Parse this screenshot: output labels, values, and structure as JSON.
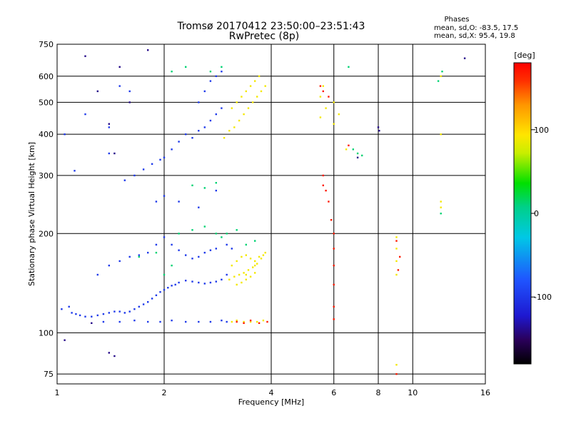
{
  "chart_data": {
    "type": "scatter",
    "title": "Tromsø 20170412 23:50:00–23:51:43",
    "subtitle": "RwPretec (8p)",
    "xlabel": "Frequency [MHz]",
    "ylabel": "Stationary phase Virtual Height [km]",
    "x_scale": "log",
    "y_scale": "log",
    "xlim": [
      1,
      16
    ],
    "ylim": [
      70,
      750
    ],
    "x_ticks": [
      1,
      2,
      4,
      6,
      8,
      10,
      16
    ],
    "x_tick_labels": [
      "1",
      "2",
      "4",
      "6",
      "8",
      "10",
      "16"
    ],
    "y_ticks": [
      75,
      100,
      200,
      300,
      400,
      500,
      600,
      750
    ],
    "y_tick_labels": [
      "75",
      "100",
      "200",
      "300",
      "400",
      "500",
      "600",
      "750"
    ],
    "grid": true,
    "phases": {
      "heading": "Phases",
      "line_o": "mean, sd,O: -83.5, 17.5",
      "line_x": "mean, sd,X:  95.4, 19.8"
    },
    "colorbar": {
      "label": "[deg]",
      "range": [
        -180,
        180
      ],
      "ticks": [
        100,
        0,
        -100
      ],
      "tick_labels": [
        "100",
        "0",
        "-100"
      ]
    },
    "series": [
      {
        "points": [
          [
            1.1,
            115
          ],
          [
            1.13,
            114
          ],
          [
            1.16,
            113
          ],
          [
            1.2,
            112
          ],
          [
            1.25,
            112
          ],
          [
            1.3,
            113
          ],
          [
            1.35,
            114
          ],
          [
            1.4,
            115
          ],
          [
            1.45,
            116
          ],
          [
            1.5,
            116
          ],
          [
            1.55,
            115
          ],
          [
            1.6,
            116
          ],
          [
            1.65,
            118
          ],
          [
            1.7,
            120
          ],
          [
            1.75,
            122
          ],
          [
            1.8,
            124
          ],
          [
            1.85,
            127
          ],
          [
            1.9,
            130
          ],
          [
            1.95,
            133
          ],
          [
            2.0,
            135
          ],
          [
            2.05,
            137
          ],
          [
            2.1,
            139
          ],
          [
            2.15,
            140
          ],
          [
            2.2,
            142
          ],
          [
            2.3,
            144
          ],
          [
            2.4,
            143
          ],
          [
            2.5,
            142
          ],
          [
            2.6,
            141
          ],
          [
            2.7,
            142
          ],
          [
            2.8,
            143
          ],
          [
            2.9,
            145
          ],
          [
            3.0,
            150
          ],
          [
            1.3,
            150
          ],
          [
            1.4,
            160
          ],
          [
            1.5,
            165
          ],
          [
            1.6,
            170
          ],
          [
            1.7,
            172
          ],
          [
            1.8,
            175
          ],
          [
            1.9,
            185
          ],
          [
            2.0,
            195
          ],
          [
            2.1,
            185
          ],
          [
            2.2,
            178
          ],
          [
            2.3,
            172
          ],
          [
            2.4,
            168
          ],
          [
            2.5,
            170
          ],
          [
            2.6,
            175
          ],
          [
            2.7,
            178
          ],
          [
            2.8,
            180
          ],
          [
            3.0,
            185
          ],
          [
            3.1,
            180
          ],
          [
            1.35,
            108
          ],
          [
            1.5,
            108
          ],
          [
            1.65,
            109
          ],
          [
            1.8,
            108
          ],
          [
            1.95,
            108
          ],
          [
            2.1,
            109
          ],
          [
            2.3,
            108
          ],
          [
            2.5,
            108
          ],
          [
            2.7,
            108
          ],
          [
            2.9,
            109
          ],
          [
            3.0,
            108
          ],
          [
            1.55,
            290
          ],
          [
            1.65,
            300
          ],
          [
            1.75,
            313
          ],
          [
            1.85,
            325
          ],
          [
            1.95,
            335
          ],
          [
            2.0,
            340
          ],
          [
            2.1,
            360
          ],
          [
            2.2,
            380
          ],
          [
            2.3,
            400
          ],
          [
            2.4,
            390
          ],
          [
            2.5,
            410
          ],
          [
            2.6,
            420
          ],
          [
            2.7,
            440
          ],
          [
            2.8,
            460
          ],
          [
            2.9,
            480
          ],
          [
            2.5,
            500
          ],
          [
            2.6,
            540
          ],
          [
            2.7,
            580
          ],
          [
            2.8,
            600
          ],
          [
            2.9,
            620
          ],
          [
            1.9,
            250
          ],
          [
            2.0,
            260
          ],
          [
            2.2,
            250
          ],
          [
            2.5,
            240
          ],
          [
            2.8,
            270
          ],
          [
            1.2,
            460
          ],
          [
            1.4,
            420
          ],
          [
            1.4,
            350
          ],
          [
            1.5,
            560
          ],
          [
            1.6,
            540
          ],
          [
            1.05,
            400
          ],
          [
            1.12,
            310
          ],
          [
            1.08,
            120
          ],
          [
            1.03,
            118
          ]
        ],
        "phase": -100
      },
      {
        "points": [
          [
            3.05,
            145
          ],
          [
            3.15,
            148
          ],
          [
            3.25,
            150
          ],
          [
            3.35,
            152
          ],
          [
            3.45,
            155
          ],
          [
            3.55,
            158
          ],
          [
            3.65,
            162
          ],
          [
            3.75,
            168
          ],
          [
            3.85,
            175
          ],
          [
            3.1,
            160
          ],
          [
            3.2,
            165
          ],
          [
            3.3,
            170
          ],
          [
            3.4,
            172
          ],
          [
            3.5,
            168
          ],
          [
            3.6,
            165
          ],
          [
            3.7,
            170
          ],
          [
            3.2,
            140
          ],
          [
            3.3,
            142
          ],
          [
            3.4,
            145
          ],
          [
            3.5,
            148
          ],
          [
            3.6,
            152
          ],
          [
            3.1,
            108
          ],
          [
            3.2,
            109
          ],
          [
            3.35,
            108
          ],
          [
            3.5,
            108
          ],
          [
            3.65,
            108
          ],
          [
            3.8,
            109
          ],
          [
            3.1,
            480
          ],
          [
            3.2,
            500
          ],
          [
            3.3,
            520
          ],
          [
            3.4,
            540
          ],
          [
            3.5,
            560
          ],
          [
            3.6,
            580
          ],
          [
            3.7,
            600
          ],
          [
            3.15,
            420
          ],
          [
            3.25,
            440
          ],
          [
            3.35,
            460
          ],
          [
            3.45,
            480
          ],
          [
            3.55,
            500
          ],
          [
            3.65,
            520
          ],
          [
            3.75,
            540
          ],
          [
            3.85,
            560
          ],
          [
            2.95,
            390
          ],
          [
            3.05,
            410
          ],
          [
            3.4,
            150
          ],
          [
            3.6,
            160
          ],
          [
            3.8,
            172
          ],
          [
            9.0,
            195
          ],
          [
            9.0,
            180
          ],
          [
            9.0,
            165
          ],
          [
            9.0,
            150
          ],
          [
            9.0,
            80
          ],
          [
            12.0,
            250
          ],
          [
            12.0,
            240
          ],
          [
            12.0,
            400
          ],
          [
            12.0,
            600
          ],
          [
            5.5,
            450
          ],
          [
            5.5,
            520
          ],
          [
            5.7,
            480
          ],
          [
            6.0,
            430
          ],
          [
            6.0,
            500
          ],
          [
            6.2,
            460
          ],
          [
            6.5,
            360
          ],
          [
            5.6,
            560
          ]
        ],
        "phase": 90
      },
      {
        "points": [
          [
            2.2,
            200
          ],
          [
            2.4,
            205
          ],
          [
            2.6,
            210
          ],
          [
            2.8,
            200
          ],
          [
            2.9,
            195
          ],
          [
            2.4,
            280
          ],
          [
            2.6,
            275
          ],
          [
            2.8,
            285
          ],
          [
            2.1,
            620
          ],
          [
            2.3,
            640
          ],
          [
            2.7,
            620
          ],
          [
            2.9,
            640
          ],
          [
            3.0,
            200
          ],
          [
            3.2,
            205
          ],
          [
            3.4,
            185
          ],
          [
            3.6,
            190
          ],
          [
            12.0,
            230
          ],
          [
            11.8,
            580
          ],
          [
            12.1,
            620
          ],
          [
            6.6,
            640
          ],
          [
            6.8,
            360
          ],
          [
            7.0,
            350
          ],
          [
            7.2,
            345
          ],
          [
            1.7,
            170
          ],
          [
            1.9,
            175
          ],
          [
            2.0,
            150
          ],
          [
            2.1,
            160
          ]
        ],
        "phase": 10
      },
      {
        "points": [
          [
            3.2,
            108
          ],
          [
            3.35,
            107
          ],
          [
            3.5,
            109
          ],
          [
            3.7,
            107
          ],
          [
            3.9,
            108
          ],
          [
            5.5,
            560
          ],
          [
            5.6,
            540
          ],
          [
            5.8,
            520
          ],
          [
            5.6,
            300
          ],
          [
            5.7,
            270
          ],
          [
            5.8,
            250
          ],
          [
            5.9,
            220
          ],
          [
            6.0,
            200
          ],
          [
            6.0,
            180
          ],
          [
            6.0,
            160
          ],
          [
            6.0,
            140
          ],
          [
            6.0,
            120
          ],
          [
            6.0,
            110
          ],
          [
            9.0,
            190
          ],
          [
            9.2,
            170
          ],
          [
            9.1,
            155
          ],
          [
            9.0,
            75
          ],
          [
            6.6,
            370
          ],
          [
            5.6,
            280
          ]
        ],
        "phase": 170
      },
      {
        "points": [
          [
            1.8,
            720
          ],
          [
            1.2,
            690
          ],
          [
            1.5,
            640
          ],
          [
            1.3,
            540
          ],
          [
            1.6,
            500
          ],
          [
            1.4,
            430
          ],
          [
            1.45,
            350
          ],
          [
            7.0,
            340
          ],
          [
            8.0,
            420
          ],
          [
            8.05,
            410
          ],
          [
            14.0,
            680
          ],
          [
            1.45,
            85
          ],
          [
            1.4,
            87
          ],
          [
            1.25,
            107
          ],
          [
            1.05,
            95
          ]
        ],
        "phase": -140
      }
    ]
  }
}
